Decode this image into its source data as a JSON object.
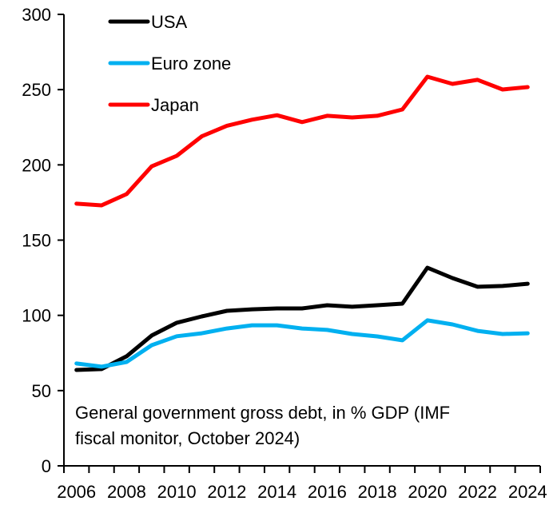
{
  "chart_data": {
    "type": "line",
    "title": "",
    "xlabel": "",
    "ylabel": "",
    "ylim": [
      0,
      300
    ],
    "yticks": [
      0,
      50,
      100,
      150,
      200,
      250,
      300
    ],
    "grid": false,
    "legend_position": "top-left",
    "x": [
      2006,
      2007,
      2008,
      2009,
      2010,
      2011,
      2012,
      2013,
      2014,
      2015,
      2016,
      2017,
      2018,
      2019,
      2020,
      2021,
      2022,
      2023,
      2024
    ],
    "xtick_labels": [
      "2006",
      "2008",
      "2010",
      "2012",
      "2014",
      "2016",
      "2018",
      "2020",
      "2022",
      "2024"
    ],
    "series": [
      {
        "name": "USA",
        "color": "#000000",
        "values": [
          63.7,
          64.3,
          72.8,
          86.6,
          95.1,
          99.3,
          103.0,
          104.0,
          104.6,
          104.6,
          106.7,
          105.7,
          106.7,
          107.8,
          131.7,
          124.8,
          119.0,
          119.5,
          121.0
        ]
      },
      {
        "name": "Euro zone",
        "color": "#00B0F0",
        "values": [
          68.0,
          65.9,
          69.0,
          80.2,
          86.1,
          88.1,
          91.3,
          93.4,
          93.4,
          91.3,
          90.3,
          87.6,
          86.0,
          83.4,
          96.7,
          94.0,
          89.7,
          87.6,
          88.1
        ]
      },
      {
        "name": "Japan",
        "color": "#FF0000",
        "values": [
          174.2,
          173.1,
          180.6,
          199.0,
          206.0,
          219.0,
          226.0,
          230.0,
          233.0,
          228.4,
          232.6,
          231.5,
          232.6,
          236.8,
          258.6,
          253.8,
          256.5,
          250.1,
          251.7
        ]
      }
    ],
    "annotation": {
      "line1": "General government gross debt, in % GDP (IMF",
      "line2": "fiscal monitor, October 2024)"
    }
  }
}
